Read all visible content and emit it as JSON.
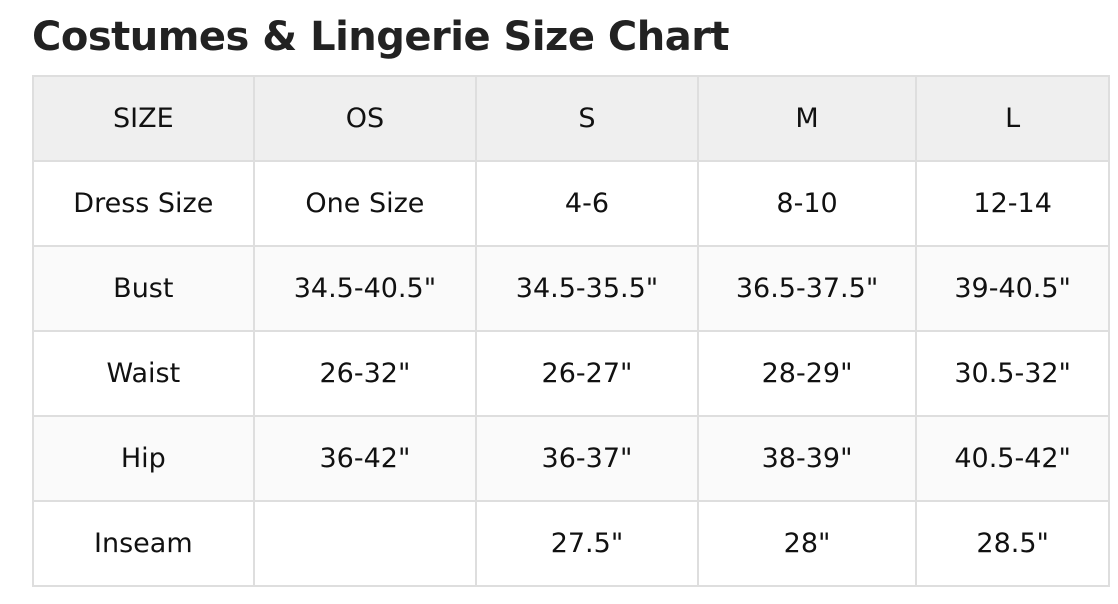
{
  "title": "Costumes & Lingerie Size Chart",
  "table": {
    "header": [
      "SIZE",
      "OS",
      "S",
      "M",
      "L"
    ],
    "rows": [
      [
        "Dress Size",
        "One Size",
        "4-6",
        "8-10",
        "12-14"
      ],
      [
        "Bust",
        "34.5-40.5\"",
        "34.5-35.5\"",
        "36.5-37.5\"",
        "39-40.5\""
      ],
      [
        "Waist",
        "26-32\"",
        "26-27\"",
        "28-29\"",
        "30.5-32\""
      ],
      [
        "Hip",
        "36-42\"",
        "36-37\"",
        "38-39\"",
        "40.5-42\""
      ],
      [
        "Inseam",
        "",
        "27.5\"",
        "28\"",
        "28.5\""
      ]
    ]
  }
}
